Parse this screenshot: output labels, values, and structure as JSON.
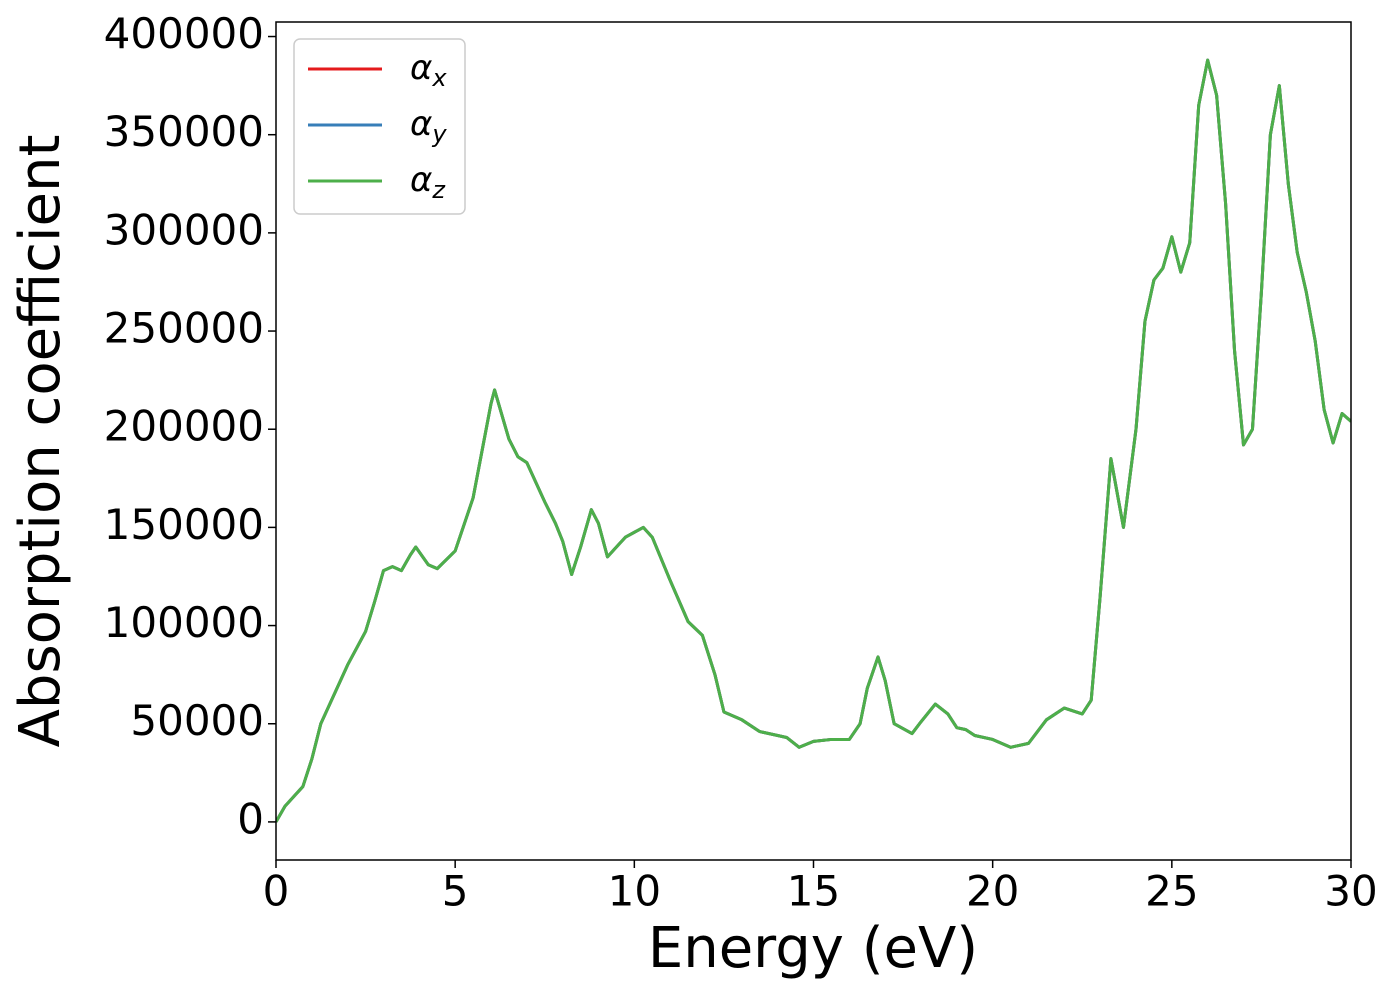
{
  "chart_data": {
    "type": "line",
    "x_label": "Energy (eV)",
    "y_label": "Absorption coefficient",
    "x": [
      0,
      0.25,
      0.5,
      0.75,
      1.0,
      1.25,
      1.5,
      2.0,
      2.5,
      2.75,
      3.0,
      3.25,
      3.5,
      3.75,
      3.9,
      4.25,
      4.5,
      5.0,
      5.5,
      6.0,
      6.1,
      6.5,
      6.75,
      7.0,
      7.5,
      7.8,
      8.0,
      8.25,
      8.5,
      8.8,
      9.0,
      9.25,
      9.5,
      9.75,
      10.25,
      10.5,
      11.0,
      11.5,
      11.9,
      12.25,
      12.5,
      13.0,
      13.5,
      14.0,
      14.25,
      14.6,
      15.0,
      15.5,
      16.0,
      16.3,
      16.5,
      16.8,
      17.0,
      17.25,
      17.75,
      18.0,
      18.4,
      18.75,
      19.0,
      19.25,
      19.5,
      20.0,
      20.5,
      21.0,
      21.5,
      22.0,
      22.5,
      22.75,
      23.0,
      23.3,
      23.5,
      23.65,
      24.0,
      24.25,
      24.5,
      24.75,
      25.0,
      25.25,
      25.5,
      25.75,
      26.0,
      26.25,
      26.5,
      26.75,
      27.0,
      27.25,
      27.5,
      27.75,
      28.0,
      28.25,
      28.5,
      28.75,
      29.0,
      29.25,
      29.5,
      29.75,
      30.0
    ],
    "series": [
      {
        "name": "αx",
        "color": "#e41a1c",
        "values": [
          0,
          8000,
          13000,
          18000,
          32000,
          50000,
          60000,
          80000,
          97000,
          112000,
          128000,
          130000,
          128000,
          136000,
          140000,
          131000,
          129000,
          138000,
          165000,
          213000,
          220000,
          195000,
          186000,
          183000,
          163000,
          152000,
          143000,
          126000,
          140000,
          159000,
          152000,
          135000,
          140000,
          145000,
          150000,
          145000,
          123000,
          102000,
          95000,
          75000,
          56000,
          52000,
          46000,
          44000,
          43000,
          38000,
          41000,
          42000,
          42000,
          50000,
          68000,
          84000,
          72000,
          50000,
          45000,
          51000,
          60000,
          55000,
          48000,
          47000,
          44000,
          42000,
          38000,
          40000,
          52000,
          58000,
          55000,
          62000,
          115000,
          185000,
          165000,
          150000,
          200000,
          255000,
          276000,
          282000,
          298000,
          280000,
          295000,
          365000,
          388000,
          370000,
          315000,
          240000,
          192000,
          200000,
          270000,
          350000,
          375000,
          325000,
          290000,
          270000,
          245000,
          210000,
          193000,
          208000,
          204000
        ]
      },
      {
        "name": "αy",
        "color": "#377eb8",
        "values": [
          0,
          8000,
          13000,
          18000,
          32000,
          50000,
          60000,
          80000,
          97000,
          112000,
          128000,
          130000,
          128000,
          136000,
          140000,
          131000,
          129000,
          138000,
          165000,
          213000,
          220000,
          195000,
          186000,
          183000,
          163000,
          152000,
          143000,
          126000,
          140000,
          159000,
          152000,
          135000,
          140000,
          145000,
          150000,
          145000,
          123000,
          102000,
          95000,
          75000,
          56000,
          52000,
          46000,
          44000,
          43000,
          38000,
          41000,
          42000,
          42000,
          50000,
          68000,
          84000,
          72000,
          50000,
          45000,
          51000,
          60000,
          55000,
          48000,
          47000,
          44000,
          42000,
          38000,
          40000,
          52000,
          58000,
          55000,
          62000,
          115000,
          185000,
          165000,
          150000,
          200000,
          255000,
          276000,
          282000,
          298000,
          280000,
          295000,
          365000,
          388000,
          370000,
          315000,
          240000,
          192000,
          200000,
          270000,
          350000,
          375000,
          325000,
          290000,
          270000,
          245000,
          210000,
          193000,
          208000,
          204000
        ]
      },
      {
        "name": "αz",
        "color": "#4daf4a",
        "values": [
          0,
          8000,
          13000,
          18000,
          32000,
          50000,
          60000,
          80000,
          97000,
          112000,
          128000,
          130000,
          128000,
          136000,
          140000,
          131000,
          129000,
          138000,
          165000,
          213000,
          220000,
          195000,
          186000,
          183000,
          163000,
          152000,
          143000,
          126000,
          140000,
          159000,
          152000,
          135000,
          140000,
          145000,
          150000,
          145000,
          123000,
          102000,
          95000,
          75000,
          56000,
          52000,
          46000,
          44000,
          43000,
          38000,
          41000,
          42000,
          42000,
          50000,
          68000,
          84000,
          72000,
          50000,
          45000,
          51000,
          60000,
          55000,
          48000,
          47000,
          44000,
          42000,
          38000,
          40000,
          52000,
          58000,
          55000,
          62000,
          115000,
          185000,
          165000,
          150000,
          200000,
          255000,
          276000,
          282000,
          298000,
          280000,
          295000,
          365000,
          388000,
          370000,
          315000,
          240000,
          192000,
          200000,
          270000,
          350000,
          375000,
          325000,
          290000,
          270000,
          245000,
          210000,
          193000,
          208000,
          204000
        ]
      }
    ],
    "xlim": [
      0,
      30
    ],
    "xticks": [
      0,
      5,
      10,
      15,
      20,
      25,
      30
    ],
    "ylim": [
      -19400,
      407400
    ],
    "yticks": [
      0,
      50000,
      100000,
      150000,
      200000,
      250000,
      300000,
      350000,
      400000
    ],
    "grid": false,
    "legend": "upper left"
  }
}
